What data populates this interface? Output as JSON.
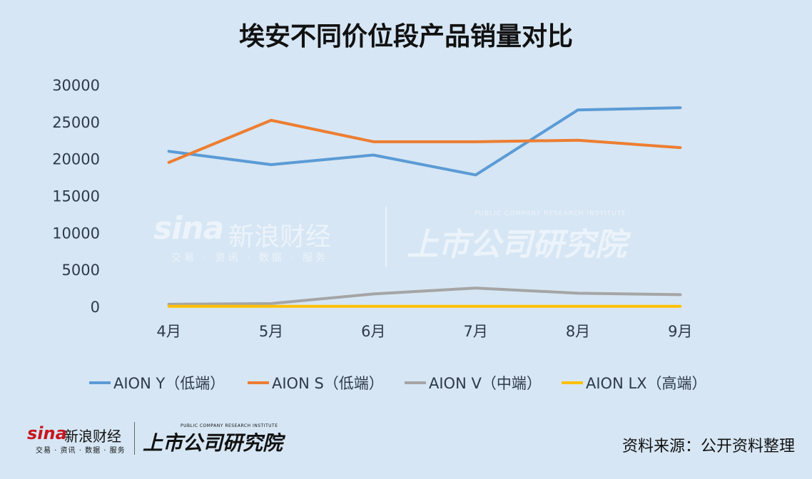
{
  "chart_data": {
    "type": "line",
    "title": "埃安不同价位段产品销量对比",
    "categories": [
      "4月",
      "5月",
      "6月",
      "7月",
      "8月",
      "9月"
    ],
    "ylim": [
      0,
      30000
    ],
    "yticks": [
      "0",
      "5000",
      "10000",
      "15000",
      "20000",
      "25000",
      "30000"
    ],
    "grid": false,
    "legend_position": "bottom",
    "series": [
      {
        "name": "AION Y（低端）",
        "color": "#5b9bd5",
        "values": [
          21000,
          19200,
          20500,
          17800,
          26600,
          26900
        ]
      },
      {
        "name": "AION S（低端）",
        "color": "#ed7d31",
        "values": [
          19500,
          25200,
          22300,
          22300,
          22500,
          21500
        ]
      },
      {
        "name": "AION V（中端）",
        "color": "#a5a5a5",
        "values": [
          300,
          400,
          1700,
          2500,
          1800,
          1600
        ]
      },
      {
        "name": "AION LX（高端）",
        "color": "#ffc000",
        "values": [
          20,
          20,
          20,
          20,
          20,
          20
        ]
      }
    ]
  },
  "source": "资料来源：公开资料整理",
  "watermark": {
    "sina": "sina",
    "brand_cn": "新浪财经",
    "brand_sub": "交易 · 资讯 · 数据 · 服务",
    "institute_cn": "上市公司研究院",
    "institute_en": "PUBLIC COMPANY RESEARCH INSTITUTE"
  }
}
